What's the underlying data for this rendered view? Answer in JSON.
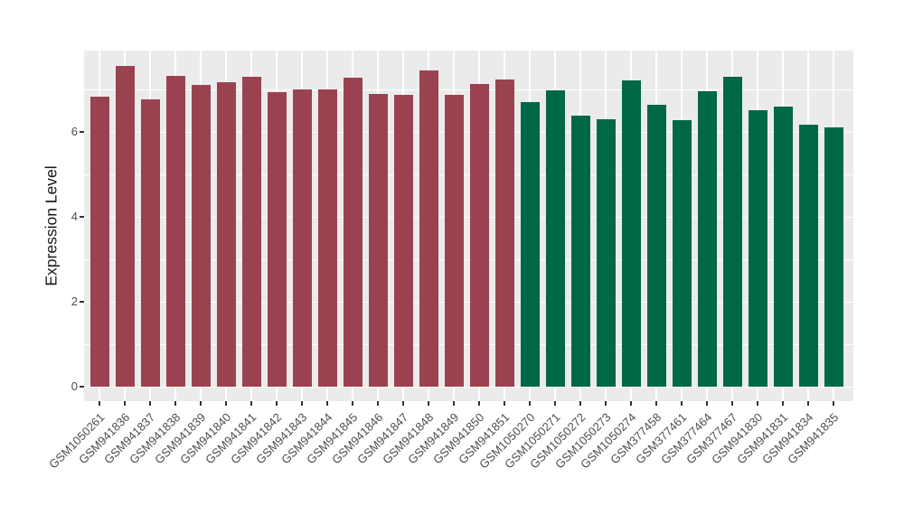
{
  "chart_data": {
    "type": "bar",
    "title": "",
    "xlabel": "",
    "ylabel": "Expression Level",
    "ylim": [
      0,
      7.9
    ],
    "yticks": [
      0,
      2,
      4,
      6
    ],
    "yminor": [
      1,
      3,
      5,
      7
    ],
    "grid": true,
    "legend": "none",
    "panel_bg_color": "#EBEBEB",
    "grid_color": "#FFFFFF",
    "group_colors": {
      "group1": "#9B4250",
      "group2": "#006847"
    },
    "categories": [
      "GSM1050261",
      "GSM941836",
      "GSM941837",
      "GSM941838",
      "GSM941839",
      "GSM941840",
      "GSM941841",
      "GSM941842",
      "GSM941843",
      "GSM941844",
      "GSM941845",
      "GSM941846",
      "GSM941847",
      "GSM941848",
      "GSM941849",
      "GSM941850",
      "GSM941851",
      "GSM1050270",
      "GSM1050271",
      "GSM1050272",
      "GSM1050273",
      "GSM1050274",
      "GSM377458",
      "GSM377461",
      "GSM377464",
      "GSM377467",
      "GSM941830",
      "GSM941831",
      "GSM941834",
      "GSM941835"
    ],
    "values": [
      6.82,
      7.55,
      6.77,
      7.31,
      7.1,
      7.18,
      7.3,
      6.93,
      6.99,
      7.01,
      7.28,
      6.89,
      6.87,
      7.45,
      6.87,
      7.13,
      7.23,
      6.7,
      6.97,
      6.38,
      6.3,
      7.21,
      6.64,
      6.28,
      6.96,
      7.3,
      6.51,
      6.6,
      6.16,
      6.1
    ],
    "groups": [
      "group1",
      "group1",
      "group1",
      "group1",
      "group1",
      "group1",
      "group1",
      "group1",
      "group1",
      "group1",
      "group1",
      "group1",
      "group1",
      "group1",
      "group1",
      "group1",
      "group1",
      "group2",
      "group2",
      "group2",
      "group2",
      "group2",
      "group2",
      "group2",
      "group2",
      "group2",
      "group2",
      "group2",
      "group2",
      "group2"
    ]
  }
}
